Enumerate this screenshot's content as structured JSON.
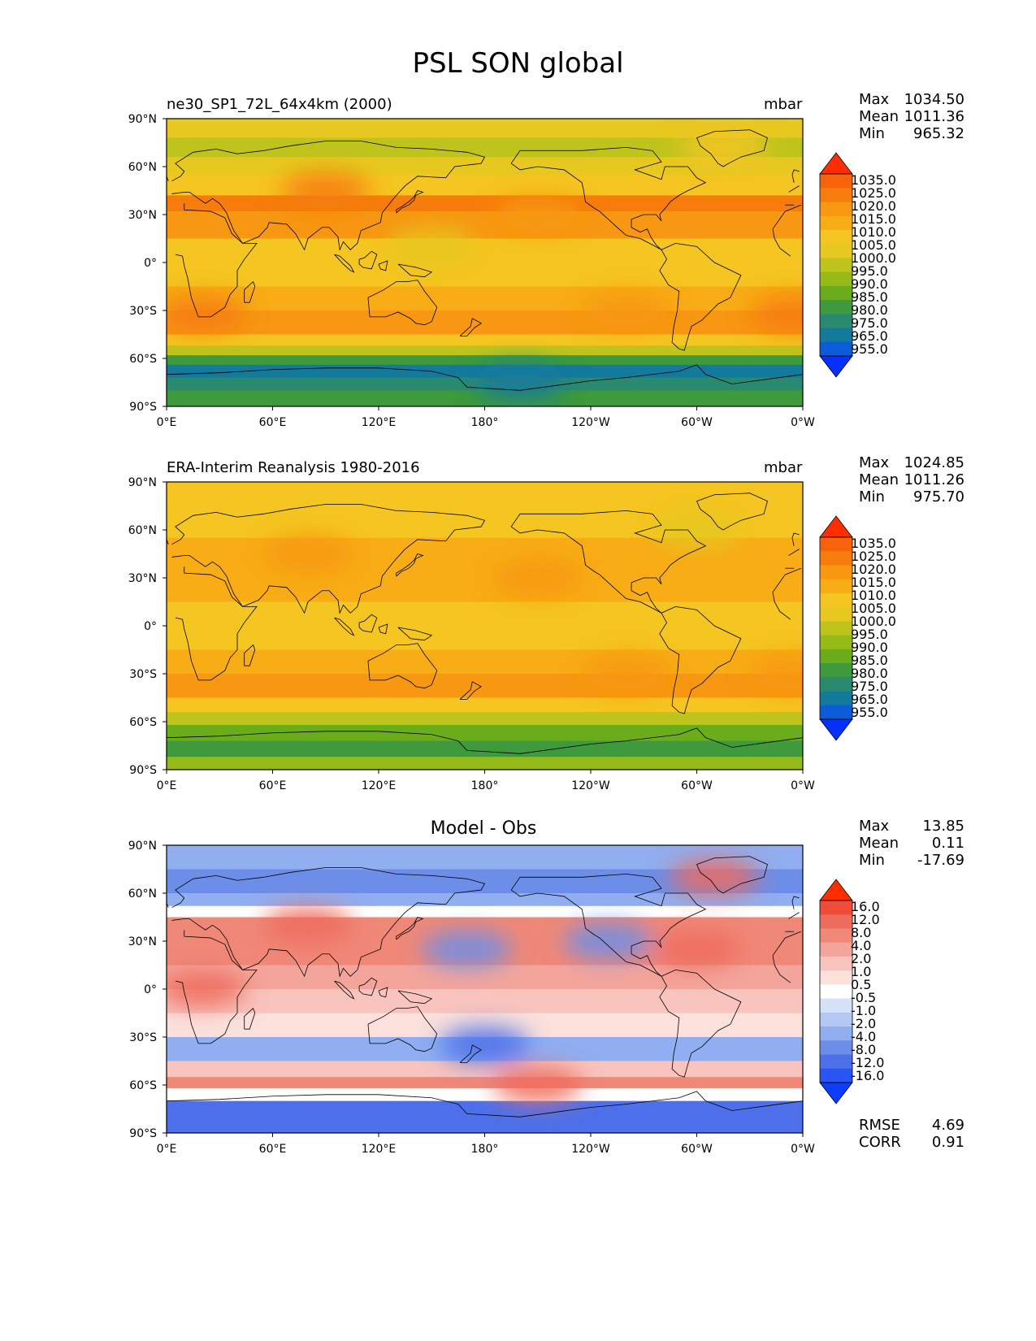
{
  "title": "PSL SON global",
  "colors": {
    "abs_scale": [
      "#0530ff",
      "#0a5cd8",
      "#147a9c",
      "#2a8a70",
      "#3e9a3c",
      "#6aac1a",
      "#96ba18",
      "#bfc41c",
      "#e6c820",
      "#f5c521",
      "#f8ac16",
      "#f79712",
      "#f67c0c",
      "#f86208",
      "#ff2d00"
    ],
    "diff_scale": [
      "#0d3dff",
      "#2a55f5",
      "#4d70ea",
      "#6d8ee8",
      "#90aef0",
      "#b4c8f4",
      "#d6e2fa",
      "#ffffff",
      "#fbe0dc",
      "#f8c4bd",
      "#f4a59b",
      "#f08878",
      "#ee6c5c",
      "#f04a38",
      "#ff2d00"
    ],
    "coastline": "#000000",
    "land_tint": "#000000"
  },
  "chart_data": [
    {
      "type": "heatmap",
      "subtitle_left": "ne30_SP1_72L_64x4km (2000)",
      "subtitle_right": "mbar",
      "stats": [
        {
          "label": "Max",
          "value": "1034.50"
        },
        {
          "label": "Mean",
          "value": "1011.36"
        },
        {
          "label": "Min",
          "value": "965.32"
        }
      ],
      "colorbar_labels": [
        "1035.0",
        "1025.0",
        "1020.0",
        "1015.0",
        "1010.0",
        "1005.0",
        "1000.0",
        "995.0",
        "990.0",
        "985.0",
        "980.0",
        "975.0",
        "965.0",
        "955.0"
      ],
      "xticks": [
        "0°E",
        "60°E",
        "120°E",
        "180°",
        "120°W",
        "60°W",
        "0°W"
      ],
      "yticks": [
        "90°N",
        "60°N",
        "30°N",
        "0°",
        "30°S",
        "60°S",
        "90°S"
      ],
      "lat_profile": [
        {
          "lat": 90,
          "level": 8
        },
        {
          "lat": 78,
          "level": 7
        },
        {
          "lat": 66,
          "level": 8
        },
        {
          "lat": 55,
          "level": 9
        },
        {
          "lat": 42,
          "level": 12
        },
        {
          "lat": 32,
          "level": 11
        },
        {
          "lat": 15,
          "level": 9
        },
        {
          "lat": 0,
          "level": 9
        },
        {
          "lat": -15,
          "level": 10
        },
        {
          "lat": -30,
          "level": 11
        },
        {
          "lat": -45,
          "level": 9
        },
        {
          "lat": -52,
          "level": 7
        },
        {
          "lat": -58,
          "level": 4
        },
        {
          "lat": -64,
          "level": 2
        },
        {
          "lat": -72,
          "level": 3
        },
        {
          "lat": -80,
          "level": 4
        },
        {
          "lat": -90,
          "level": 5
        }
      ],
      "blobs": [
        {
          "lon": 90,
          "lat": 45,
          "level": 12
        },
        {
          "lon": 20,
          "lat": -32,
          "level": 12
        },
        {
          "lon": 355,
          "lat": -32,
          "level": 12
        },
        {
          "lon": 260,
          "lat": -30,
          "level": 11
        },
        {
          "lon": 210,
          "lat": 30,
          "level": 11
        },
        {
          "lon": 150,
          "lat": 10,
          "level": 8
        },
        {
          "lon": 315,
          "lat": 72,
          "level": 9
        },
        {
          "lon": 200,
          "lat": -75,
          "level": 2
        }
      ]
    },
    {
      "type": "heatmap",
      "subtitle_left": "ERA-Interim Reanalysis 1980-2016",
      "subtitle_right": "mbar",
      "stats": [
        {
          "label": "Max",
          "value": "1024.85"
        },
        {
          "label": "Mean",
          "value": "1011.26"
        },
        {
          "label": "Min",
          "value": "975.70"
        }
      ],
      "colorbar_labels": [
        "1035.0",
        "1025.0",
        "1020.0",
        "1015.0",
        "1010.0",
        "1005.0",
        "1000.0",
        "995.0",
        "990.0",
        "985.0",
        "980.0",
        "975.0",
        "965.0",
        "955.0"
      ],
      "xticks": [
        "0°E",
        "60°E",
        "120°E",
        "180°",
        "120°W",
        "60°W",
        "0°W"
      ],
      "yticks": [
        "90°N",
        "60°N",
        "30°N",
        "0°",
        "30°S",
        "60°S",
        "90°S"
      ],
      "lat_profile": [
        {
          "lat": 90,
          "level": 9
        },
        {
          "lat": 70,
          "level": 9
        },
        {
          "lat": 55,
          "level": 10
        },
        {
          "lat": 40,
          "level": 10
        },
        {
          "lat": 30,
          "level": 10
        },
        {
          "lat": 15,
          "level": 9
        },
        {
          "lat": 0,
          "level": 9
        },
        {
          "lat": -15,
          "level": 10
        },
        {
          "lat": -30,
          "level": 11
        },
        {
          "lat": -45,
          "level": 9
        },
        {
          "lat": -54,
          "level": 7
        },
        {
          "lat": -62,
          "level": 5
        },
        {
          "lat": -72,
          "level": 4
        },
        {
          "lat": -82,
          "level": 6
        },
        {
          "lat": -90,
          "level": 8
        }
      ],
      "blobs": [
        {
          "lon": 80,
          "lat": 45,
          "level": 11
        },
        {
          "lon": 210,
          "lat": 30,
          "level": 11
        },
        {
          "lon": 260,
          "lat": -30,
          "level": 11
        },
        {
          "lon": 355,
          "lat": -30,
          "level": 11
        },
        {
          "lon": 300,
          "lat": 60,
          "level": 8
        }
      ]
    },
    {
      "type": "heatmap",
      "subtitle_center": "Model - Obs",
      "stats": [
        {
          "label": "Max",
          "value": "13.85"
        },
        {
          "label": "Mean",
          "value": "0.11"
        },
        {
          "label": "Min",
          "value": "-17.69"
        }
      ],
      "colorbar_labels": [
        "16.0",
        "12.0",
        "8.0",
        "4.0",
        "2.0",
        "1.0",
        "0.5",
        "-0.5",
        "-1.0",
        "-2.0",
        "-4.0",
        "-8.0",
        "-12.0",
        "-16.0"
      ],
      "xticks": [
        "0°E",
        "60°E",
        "120°E",
        "180°",
        "120°W",
        "60°W",
        "0°W"
      ],
      "yticks": [
        "90°N",
        "60°N",
        "30°N",
        "0°",
        "30°S",
        "60°S",
        "90°S"
      ],
      "footer_stats": [
        {
          "label": "RMSE",
          "value": "4.69"
        },
        {
          "label": "CORR",
          "value": "0.91"
        }
      ],
      "lat_profile": [
        {
          "lat": 90,
          "level": 4
        },
        {
          "lat": 75,
          "level": 3
        },
        {
          "lat": 60,
          "level": 4
        },
        {
          "lat": 52,
          "level": 7
        },
        {
          "lat": 45,
          "level": 11
        },
        {
          "lat": 30,
          "level": 11
        },
        {
          "lat": 15,
          "level": 10
        },
        {
          "lat": 0,
          "level": 9
        },
        {
          "lat": -15,
          "level": 8
        },
        {
          "lat": -30,
          "level": 4
        },
        {
          "lat": -45,
          "level": 9
        },
        {
          "lat": -55,
          "level": 11
        },
        {
          "lat": -62,
          "level": 7
        },
        {
          "lat": -70,
          "level": 2
        },
        {
          "lat": -90,
          "level": 1
        }
      ],
      "blobs": [
        {
          "lon": 170,
          "lat": 25,
          "level": 3
        },
        {
          "lon": 250,
          "lat": 30,
          "level": 3
        },
        {
          "lon": 300,
          "lat": 25,
          "level": 12
        },
        {
          "lon": 180,
          "lat": -35,
          "level": 2
        },
        {
          "lon": 210,
          "lat": -60,
          "level": 12
        },
        {
          "lon": 80,
          "lat": 40,
          "level": 12
        },
        {
          "lon": 20,
          "lat": 0,
          "level": 12
        },
        {
          "lon": 310,
          "lat": 70,
          "level": 12
        }
      ]
    }
  ]
}
